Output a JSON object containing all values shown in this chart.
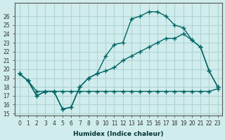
{
  "xlabel": "Humidex (Indice chaleur)",
  "ylabel": "",
  "bg_color": "#d0ecec",
  "grid_color": "#b0d4d4",
  "line_color": "#006666",
  "xlim": [
    -0.5,
    23.5
  ],
  "ylim": [
    15,
    27
  ],
  "yticks": [
    15,
    16,
    17,
    18,
    19,
    20,
    21,
    22,
    23,
    24,
    25,
    26
  ],
  "xticks": [
    0,
    1,
    2,
    3,
    4,
    5,
    6,
    7,
    8,
    9,
    10,
    11,
    12,
    13,
    14,
    15,
    16,
    17,
    18,
    19,
    20,
    21,
    22,
    23
  ],
  "line1_x": [
    0,
    1,
    2,
    3,
    4,
    5,
    6,
    7,
    8,
    9,
    10,
    11,
    12,
    13,
    14,
    15,
    16,
    17,
    18,
    19,
    20,
    21,
    22,
    23
  ],
  "line1_y": [
    19.5,
    18.7,
    17.0,
    17.5,
    17.5,
    15.5,
    15.7,
    18.0,
    19.0,
    19.5,
    21.5,
    22.8,
    23.0,
    25.7,
    26.0,
    26.5,
    26.5,
    26.0,
    25.0,
    24.7,
    23.3,
    22.5,
    19.8,
    18.0
  ],
  "line2_x": [
    0,
    1,
    2,
    3,
    4,
    5,
    6,
    7,
    8,
    9,
    10,
    11,
    12,
    13,
    14,
    15,
    16,
    17,
    18,
    19,
    20,
    21,
    22,
    23
  ],
  "line2_y": [
    19.5,
    18.7,
    17.0,
    17.5,
    17.5,
    15.5,
    15.7,
    18.0,
    19.0,
    19.5,
    19.8,
    20.2,
    21.0,
    21.5,
    22.0,
    22.5,
    23.0,
    23.5,
    23.5,
    24.0,
    23.3,
    22.5,
    19.8,
    18.0
  ],
  "line3_x": [
    0,
    1,
    2,
    3,
    4,
    5,
    6,
    7,
    8,
    9,
    10,
    11,
    12,
    13,
    14,
    15,
    16,
    17,
    18,
    19,
    20,
    21,
    22,
    23
  ],
  "line3_y": [
    19.5,
    18.7,
    17.5,
    17.5,
    17.5,
    17.5,
    17.5,
    17.5,
    17.5,
    17.5,
    17.5,
    17.5,
    17.5,
    17.5,
    17.5,
    17.5,
    17.5,
    17.5,
    17.5,
    17.5,
    17.5,
    17.5,
    17.5,
    17.8
  ]
}
